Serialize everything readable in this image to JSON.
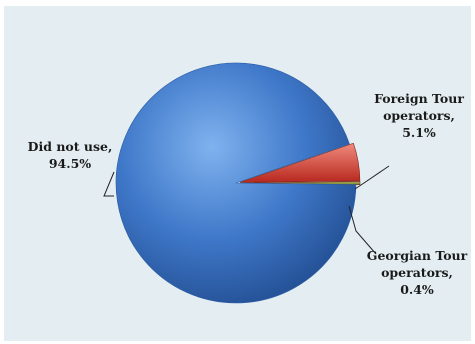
{
  "chart_data": {
    "type": "pie",
    "title": "",
    "slices": [
      {
        "label_lines": [
          "Did not use,",
          "94.5%"
        ],
        "value": 94.5,
        "color": "#3f78c9"
      },
      {
        "label_lines": [
          "Foreign Tour",
          "operators,",
          "5.1%"
        ],
        "value": 5.1,
        "color": "#d9453a"
      },
      {
        "label_lines": [
          "Georgian Tour",
          "operators,",
          "0.4%"
        ],
        "value": 0.4,
        "color": "#8a9a3a"
      }
    ],
    "legend": "none",
    "data_labels": "outside with leader lines"
  }
}
